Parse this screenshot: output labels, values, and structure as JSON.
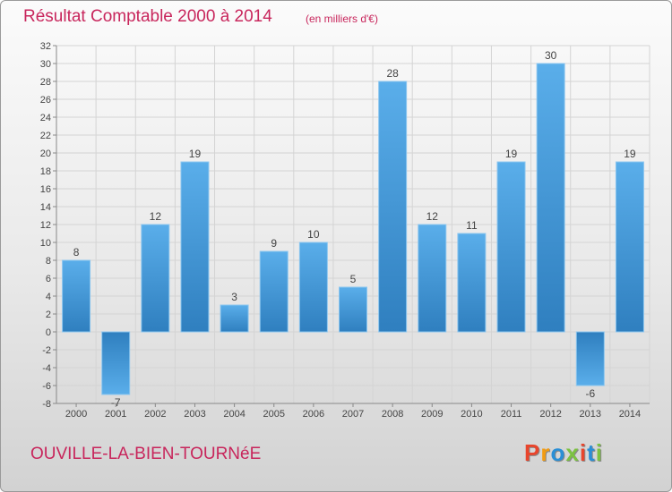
{
  "header": {
    "title": "Résultat Comptable 2000 à 2014",
    "subtitle": "(en milliers d'€)"
  },
  "footer": {
    "commune": "OUVILLE-LA-BIEN-TOURNéE",
    "brand": "Proxiti",
    "brand_colors": [
      "#e8452c",
      "#f39c12",
      "#2a8fd6",
      "#7cc242",
      "#e8452c",
      "#2a8fd6",
      "#7cc242"
    ]
  },
  "chart_data": {
    "type": "bar",
    "categories": [
      "2000",
      "2001",
      "2002",
      "2003",
      "2004",
      "2005",
      "2006",
      "2007",
      "2008",
      "2009",
      "2010",
      "2011",
      "2012",
      "2013",
      "2014"
    ],
    "values": [
      8,
      -7,
      12,
      19,
      3,
      9,
      10,
      5,
      28,
      12,
      11,
      19,
      30,
      -6,
      19
    ],
    "ylim": [
      -8,
      32
    ],
    "yticks": [
      -8,
      -6,
      -4,
      -2,
      0,
      2,
      4,
      6,
      8,
      10,
      12,
      14,
      16,
      18,
      20,
      22,
      24,
      26,
      28,
      30,
      32
    ],
    "grid": true,
    "bar_color_light": "#5aaeea",
    "bar_color_dark": "#2f7fbf"
  }
}
